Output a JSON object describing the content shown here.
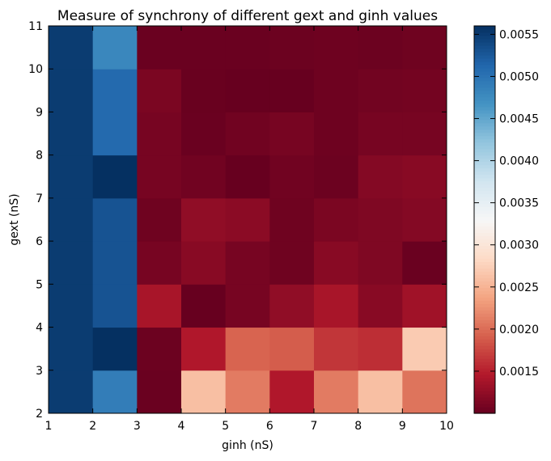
{
  "chart_data": {
    "type": "heatmap",
    "title": "Measure of synchrony of different gext and ginh values",
    "xlabel": "ginh (nS)",
    "ylabel": "gext (nS)",
    "x_edges": [
      1,
      2,
      3,
      4,
      5,
      6,
      7,
      8,
      9,
      10
    ],
    "y_edges": [
      2,
      3,
      4,
      5,
      6,
      7,
      8,
      9,
      10,
      11
    ],
    "x_ticks": [
      "1",
      "2",
      "3",
      "4",
      "5",
      "6",
      "7",
      "8",
      "9",
      "10"
    ],
    "y_ticks": [
      "2",
      "3",
      "4",
      "5",
      "6",
      "7",
      "8",
      "9",
      "10",
      "11"
    ],
    "grid": false,
    "colormap": "RdBu",
    "clim": [
      0.001,
      0.0056
    ],
    "colorbar_ticks": [
      "0.0015",
      "0.0020",
      "0.0025",
      "0.0030",
      "0.0035",
      "0.0040",
      "0.0045",
      "0.0050",
      "0.0055"
    ],
    "colorbar_tick_values": [
      0.0015,
      0.002,
      0.0025,
      0.003,
      0.0035,
      0.004,
      0.0045,
      0.005,
      0.0055
    ],
    "values": [
      [
        0.0055,
        0.0049,
        0.00102,
        0.0026,
        0.0021,
        0.00145,
        0.0021,
        0.0026,
        0.00205
      ],
      [
        0.0055,
        0.0056,
        0.00103,
        0.00145,
        0.00195,
        0.0019,
        0.00165,
        0.0016,
        0.0027
      ],
      [
        0.0055,
        0.0053,
        0.0014,
        0.001,
        0.0011,
        0.00125,
        0.0014,
        0.0012,
        0.00135
      ],
      [
        0.0055,
        0.0053,
        0.0011,
        0.0012,
        0.0011,
        0.00105,
        0.0012,
        0.00115,
        0.00102
      ],
      [
        0.0055,
        0.0053,
        0.00105,
        0.00125,
        0.00122,
        0.00105,
        0.00112,
        0.00115,
        0.00118
      ],
      [
        0.0055,
        0.0056,
        0.0011,
        0.00106,
        0.001,
        0.00106,
        0.00103,
        0.00118,
        0.0012
      ],
      [
        0.0055,
        0.0051,
        0.0011,
        0.00102,
        0.00106,
        0.0011,
        0.00104,
        0.0011,
        0.0011
      ],
      [
        0.0055,
        0.0051,
        0.00112,
        0.00101,
        0.001,
        0.001,
        0.00104,
        0.00107,
        0.00108
      ],
      [
        0.0055,
        0.0048,
        0.00102,
        0.00102,
        0.00102,
        0.00103,
        0.00104,
        0.00103,
        0.00105
      ]
    ]
  }
}
